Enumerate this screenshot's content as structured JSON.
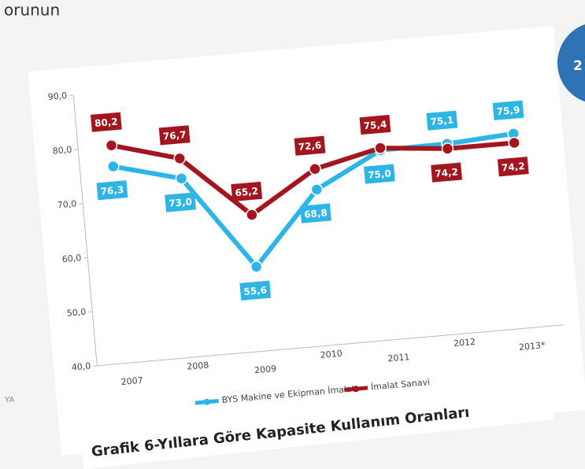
{
  "header_fragment": "orunun",
  "badge": "2",
  "side_fragment": "YA",
  "chart_data": {
    "type": "line",
    "caption": "Grafik 6-Yıllara Göre Kapasite Kullanım Oranları",
    "categories": [
      "2007",
      "2008",
      "2009",
      "2010",
      "2011",
      "2012",
      "2013*"
    ],
    "series": [
      {
        "name": "BYS Makine ve Ekipman İmalatı",
        "color": "#2cb5e6",
        "values": [
          76.3,
          73.0,
          55.6,
          68.8,
          75.0,
          75.1,
          75.9
        ],
        "value_labels": [
          "76,3",
          "73,0",
          "55,6",
          "68,8",
          "75,0",
          "75,1",
          "75,9"
        ]
      },
      {
        "name": "İmalat Sanayi",
        "color": "#a3151f",
        "values": [
          80.2,
          76.7,
          65.2,
          72.6,
          75.4,
          74.2,
          74.2
        ],
        "value_labels": [
          "80,2",
          "76,7",
          "65,2",
          "72,6",
          "75,4",
          "74,2",
          "74,2"
        ]
      }
    ],
    "ylim": [
      40,
      90
    ],
    "yticks": [
      {
        "value": 40,
        "label": "40,0"
      },
      {
        "value": 50,
        "label": "50,0"
      },
      {
        "value": 60,
        "label": "60,0"
      },
      {
        "value": 70,
        "label": "70,0"
      },
      {
        "value": 80,
        "label": "80,0"
      },
      {
        "value": 90,
        "label": "90,0"
      }
    ],
    "legend": "bottom"
  }
}
